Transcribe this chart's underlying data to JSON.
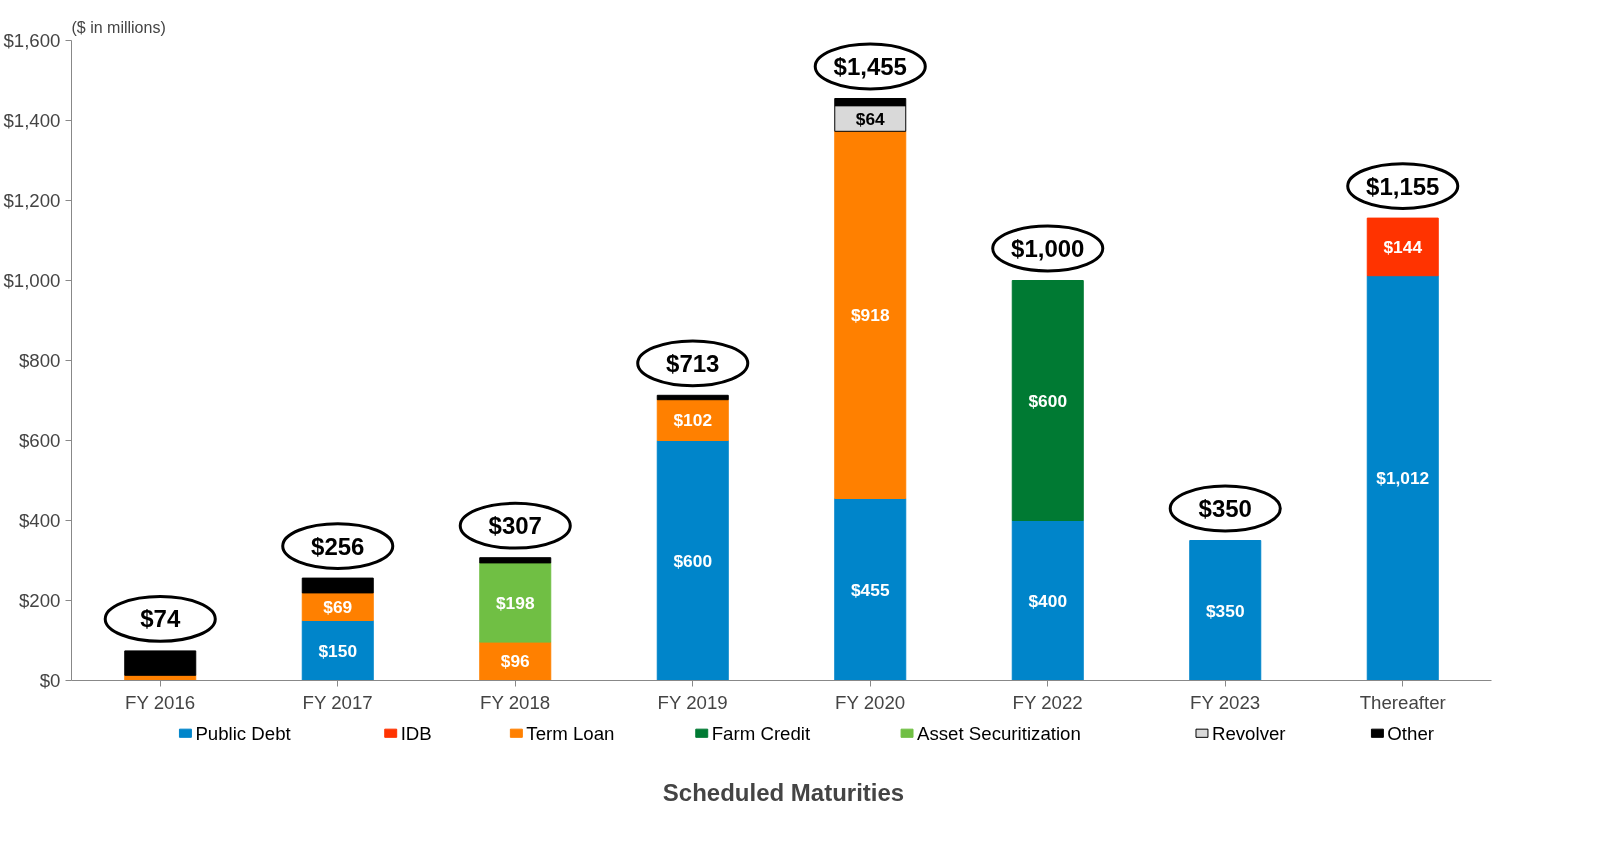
{
  "chart_data": {
    "type": "bar",
    "stacked": true,
    "xlabel": "Scheduled Maturities",
    "ylabel": "($ in millions)",
    "categories": [
      "FY 2016",
      "FY 2017",
      "FY 2018",
      "FY 2019",
      "FY 2020",
      "FY 2022",
      "FY 2023",
      "Thereafter"
    ],
    "ylim": [
      0,
      1600
    ],
    "yticks": [
      {
        "value": 0,
        "label": "$0"
      },
      {
        "value": 200,
        "label": "$200"
      },
      {
        "value": 400,
        "label": "$400"
      },
      {
        "value": 600,
        "label": "$600"
      },
      {
        "value": 800,
        "label": "$800"
      },
      {
        "value": 1000,
        "label": "$1,000"
      },
      {
        "value": 1200,
        "label": "$1,200"
      },
      {
        "value": 1400,
        "label": "$1,400"
      },
      {
        "value": 1600,
        "label": "$1,600"
      }
    ],
    "grid": false,
    "legend": "bottom",
    "series": [
      {
        "name": "Public Debt",
        "color": "#0085ca",
        "values": [
          null,
          150,
          null,
          600,
          455,
          400,
          350,
          1012
        ],
        "value_labels": [
          null,
          "$150",
          null,
          "$600",
          "$455",
          "$400",
          "$350",
          "$1,012"
        ]
      },
      {
        "name": "IDB",
        "color": "#ff3300",
        "values": [
          null,
          null,
          null,
          null,
          null,
          null,
          null,
          144
        ],
        "value_labels": [
          null,
          null,
          null,
          null,
          null,
          null,
          null,
          "$144"
        ]
      },
      {
        "name": "Term Loan",
        "color": "#ff8000",
        "values": [
          13,
          69,
          96,
          102,
          918,
          null,
          null,
          null
        ],
        "value_labels": [
          null,
          "$69",
          "$96",
          "$102",
          "$918",
          null,
          null,
          null
        ]
      },
      {
        "name": "Farm Credit",
        "color": "#007a33",
        "values": [
          null,
          null,
          null,
          null,
          null,
          600,
          null,
          null
        ],
        "value_labels": [
          null,
          null,
          null,
          null,
          null,
          "$600",
          null,
          null
        ]
      },
      {
        "name": "Asset Securitization",
        "color": "#70bf44",
        "values": [
          null,
          null,
          198,
          null,
          null,
          null,
          null,
          null
        ],
        "value_labels": [
          null,
          null,
          "$198",
          null,
          null,
          null,
          null,
          null
        ]
      },
      {
        "name": "Revolver",
        "color": "#d9d9d9",
        "values": [
          null,
          null,
          null,
          null,
          64,
          null,
          null,
          null
        ],
        "value_labels": [
          null,
          null,
          null,
          null,
          "$64",
          null,
          null,
          null
        ]
      },
      {
        "name": "Other",
        "color": "#000000",
        "values": [
          61,
          37,
          13,
          11,
          18,
          null,
          null,
          null
        ],
        "value_labels": [
          null,
          null,
          null,
          null,
          null,
          null,
          null,
          null
        ]
      }
    ],
    "totals": [
      "$74",
      "$256",
      "$307",
      "$713",
      "$1,455",
      "$1,000",
      "$350",
      "$1,155"
    ]
  }
}
